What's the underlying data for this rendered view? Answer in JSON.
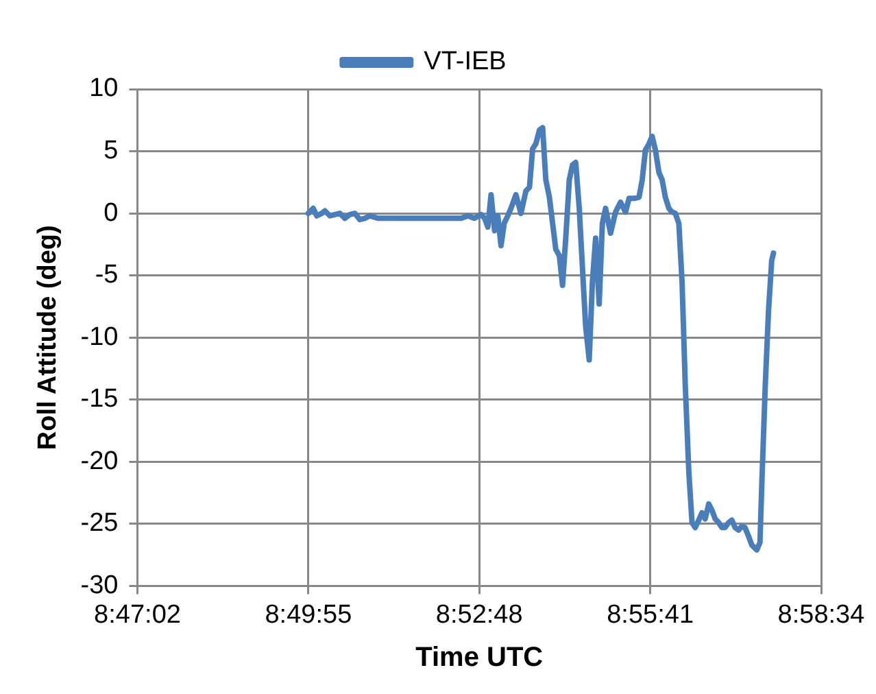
{
  "chart_data": {
    "type": "line",
    "xlabel": "Time UTC",
    "ylabel": "Roll Attitude (deg)",
    "xlim": [
      8.783889,
      8.976111
    ],
    "xticks": [
      {
        "value": 8.783889,
        "label": "8:47:02"
      },
      {
        "value": 8.831944,
        "label": "8:49:55"
      },
      {
        "value": 8.88,
        "label": "8:52:48"
      },
      {
        "value": 8.928056,
        "label": "8:55:41"
      },
      {
        "value": 8.976111,
        "label": "8:58:34"
      }
    ],
    "ylim": [
      -30,
      10
    ],
    "yticks": [
      -30,
      -25,
      -20,
      -15,
      -10,
      -5,
      0,
      5,
      10
    ],
    "grid": true,
    "legend": "top",
    "marker": "none",
    "line_style": "solid",
    "series": [
      {
        "name": "VT-IEB",
        "color": "#4a7ebb",
        "x": [
          8.8319,
          8.8333,
          8.8343,
          8.8357,
          8.8366,
          8.838,
          8.8394,
          8.8408,
          8.8422,
          8.8436,
          8.845,
          8.8464,
          8.8478,
          8.8492,
          8.8516,
          8.8609,
          8.8749,
          8.8768,
          8.8786,
          8.8805,
          8.8815,
          8.8824,
          8.8833,
          8.8843,
          8.8852,
          8.8861,
          8.887,
          8.888,
          8.8889,
          8.8903,
          8.8917,
          8.8931,
          8.8941,
          8.895,
          8.8959,
          8.8969,
          8.8978,
          8.8987,
          8.8997,
          8.9006,
          8.9015,
          8.9025,
          8.9034,
          8.9043,
          8.9053,
          8.9062,
          8.9071,
          8.9081,
          8.909,
          8.9099,
          8.9109,
          8.9118,
          8.9127,
          8.9137,
          8.9146,
          8.9155,
          8.9169,
          8.9183,
          8.9197,
          8.9211,
          8.9221,
          8.9235,
          8.9249,
          8.9258,
          8.9267,
          8.9277,
          8.9286,
          8.9295,
          8.9305,
          8.9314,
          8.9323,
          8.9333,
          8.9342,
          8.9351,
          8.9361,
          8.937,
          8.9379,
          8.9389,
          8.9398,
          8.9407,
          8.9417,
          8.9426,
          8.9435,
          8.9445,
          8.9454,
          8.9463,
          8.9473,
          8.9482,
          8.9491,
          8.9501,
          8.951,
          8.9519,
          8.9529,
          8.9538,
          8.9547,
          8.9557,
          8.9566,
          8.958,
          8.9589,
          8.9594,
          8.9604,
          8.9613,
          8.9622,
          8.9627
        ],
        "values": [
          0,
          0.4,
          -0.2,
          0,
          0.2,
          -0.2,
          -0.1,
          0,
          -0.4,
          -0.1,
          0,
          -0.5,
          -0.4,
          -0.2,
          -0.4,
          -0.4,
          -0.4,
          -0.2,
          -0.4,
          -0.1,
          -0.4,
          -1.1,
          1.5,
          -1.4,
          -0.2,
          -2.6,
          -0.8,
          -0.2,
          0.4,
          1.5,
          0,
          1.8,
          2.1,
          5.2,
          5.6,
          6.7,
          6.9,
          2.7,
          1.3,
          -0.8,
          -2.9,
          -3.4,
          -5.8,
          -2.0,
          2.7,
          3.9,
          4.1,
          0.4,
          -4.4,
          -9.1,
          -11.8,
          -5.5,
          -2.0,
          -7.3,
          -0.8,
          0.4,
          -1.6,
          0.1,
          0.9,
          0.1,
          1.2,
          1.2,
          1.3,
          2.7,
          5.1,
          5.6,
          6.2,
          5.1,
          3.3,
          2.7,
          1.3,
          0.4,
          0.1,
          0,
          -0.8,
          -5.5,
          -13.8,
          -20.8,
          -24.9,
          -25.3,
          -24.7,
          -24.1,
          -24.6,
          -23.4,
          -23.9,
          -24.6,
          -24.9,
          -25.3,
          -25.3,
          -24.9,
          -24.7,
          -25.3,
          -25.5,
          -25.2,
          -25.3,
          -26.0,
          -26.7,
          -27.1,
          -26.5,
          -22.0,
          -13.8,
          -7.9,
          -3.8,
          -3.2
        ]
      }
    ]
  }
}
